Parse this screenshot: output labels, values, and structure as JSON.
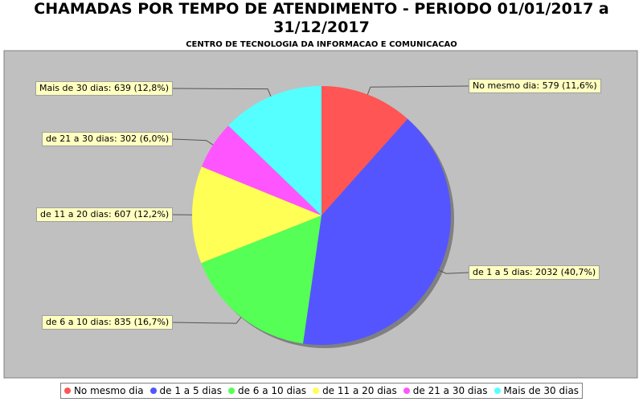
{
  "chart_data": {
    "type": "pie",
    "title": "CHAMADAS POR TEMPO DE ATENDIMENTO - PERIODO 01/01/2017 a 31/12/2017",
    "subtitle": "CENTRO DE TECNOLOGIA DA INFORMACAO E COMUNICACAO",
    "categories": [
      "No mesmo dia",
      "de 1 a 5 dias",
      "de 6 a 10 dias",
      "de 11 a 20 dias",
      "de 21 a 30 dias",
      "Mais de 30 dias"
    ],
    "values": [
      579,
      2032,
      835,
      607,
      302,
      639
    ],
    "value_labels": [
      "No mesmo dia: 579 (11,6%)",
      "de 1 a 5 dias: 2032 (40,7%)",
      "de 6 a 10 dias: 835 (16,7%)",
      "de 11 a 20 dias: 607 (12,2%)",
      "de 21 a 30 dias: 302 (6,0%)",
      "Mais de 30 dias: 639 (12,8%)"
    ],
    "colors": [
      "#ff5555",
      "#5555ff",
      "#55ff55",
      "#ffff55",
      "#ff55ff",
      "#55ffff"
    ],
    "legend": "bottom"
  }
}
